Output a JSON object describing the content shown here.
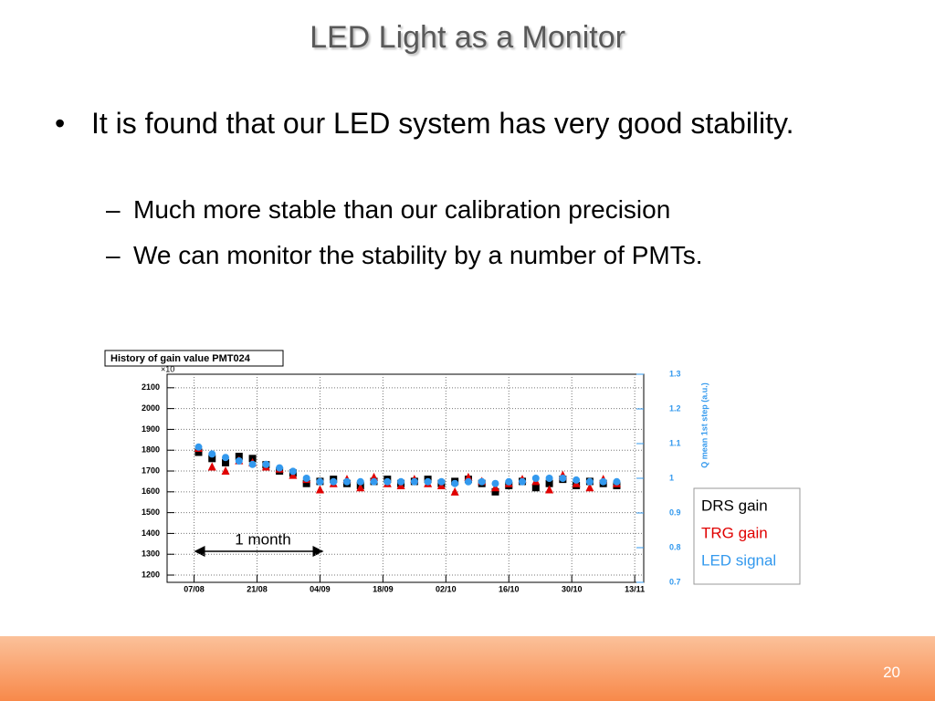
{
  "title": "LED Light as a Monitor",
  "bullets": [
    {
      "text": "It is found that our LED system has very good stability.",
      "sub": [
        "Much more stable than our calibration precision",
        "We can monitor the stability by a number of PMTs."
      ]
    }
  ],
  "page_number": 20,
  "chart_data": {
    "type": "scatter",
    "title": "History of gain value PMT024",
    "y_multiplier_label": "×10",
    "y2label": "Q mean 1st step (a.u.)",
    "annotation": "1 month",
    "x": [
      "08/08",
      "11/08",
      "14/08",
      "17/08",
      "20/08",
      "23/08",
      "26/08",
      "29/08",
      "01/09",
      "04/09",
      "07/09",
      "10/09",
      "13/09",
      "16/09",
      "19/09",
      "22/09",
      "25/09",
      "28/09",
      "01/10",
      "04/10",
      "07/10",
      "10/10",
      "13/10",
      "16/10",
      "19/10",
      "22/10",
      "25/10",
      "28/10",
      "31/10",
      "03/11",
      "06/11",
      "09/11"
    ],
    "series": [
      {
        "name": "DRS gain",
        "color": "#000000",
        "marker": "square",
        "values": [
          1790,
          1760,
          1740,
          1770,
          1760,
          1730,
          1700,
          1690,
          1640,
          1650,
          1660,
          1640,
          1630,
          1650,
          1660,
          1640,
          1650,
          1660,
          1640,
          1650,
          1660,
          1640,
          1600,
          1630,
          1650,
          1620,
          1640,
          1660,
          1630,
          1650,
          1640,
          1630
        ]
      },
      {
        "name": "TRG gain",
        "color": "#e00000",
        "marker": "triangle",
        "values": [
          1810,
          1720,
          1700,
          1750,
          1740,
          1720,
          1710,
          1680,
          1660,
          1610,
          1640,
          1660,
          1620,
          1670,
          1640,
          1630,
          1660,
          1640,
          1630,
          1600,
          1670,
          1650,
          1620,
          1640,
          1660,
          1650,
          1610,
          1680,
          1640,
          1620,
          1660,
          1640
        ]
      },
      {
        "name": "LED signal",
        "color": "#3399ee",
        "marker": "circle",
        "axis": "y2",
        "values": [
          1.09,
          1.07,
          1.06,
          1.05,
          1.04,
          1.04,
          1.03,
          1.02,
          1.0,
          0.99,
          0.99,
          0.99,
          0.99,
          0.99,
          0.99,
          0.99,
          0.99,
          0.99,
          0.99,
          0.985,
          0.99,
          0.99,
          0.985,
          0.99,
          0.99,
          1.0,
          1.0,
          1.0,
          0.995,
          0.99,
          0.99,
          0.99
        ]
      }
    ],
    "xlim": [
      "01/08",
      "15/11"
    ],
    "xticks": [
      "07/08",
      "21/08",
      "04/09",
      "18/09",
      "02/10",
      "16/10",
      "30/10",
      "13/11"
    ],
    "ylim": [
      1165,
      2165
    ],
    "yticks": [
      1200,
      1300,
      1400,
      1500,
      1600,
      1700,
      1800,
      1900,
      2000,
      2100
    ],
    "y2lim": [
      0.7,
      1.3
    ],
    "y2ticks": [
      0.7,
      0.8,
      0.9,
      1,
      1.1,
      1.2,
      1.3
    ],
    "grid": true
  }
}
